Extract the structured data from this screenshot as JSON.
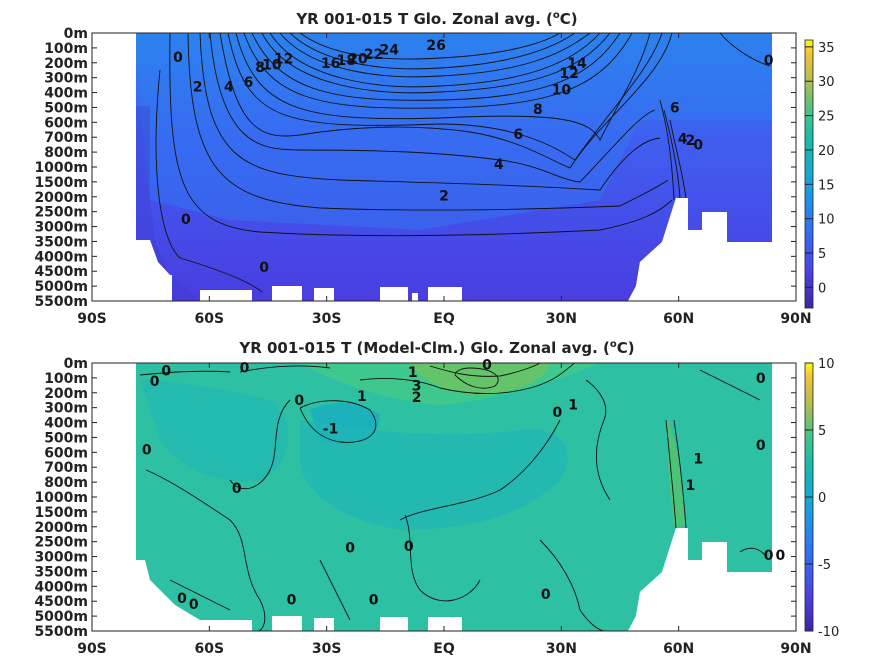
{
  "chart_data": [
    {
      "type": "heatmap",
      "title": "YR 001-015 T Glo. Zonal avg. (°C)",
      "title_main": "YR 001-015 T Glo. Zonal avg. (",
      "title_sup": "o",
      "title_unit": "C)",
      "x_ticks": [
        "90S",
        "60S",
        "30S",
        "EQ",
        "30N",
        "60N",
        "90N"
      ],
      "x_values": [
        -90,
        -60,
        -30,
        0,
        30,
        60,
        90
      ],
      "y_ticks": [
        "0m",
        "100m",
        "200m",
        "300m",
        "400m",
        "500m",
        "600m",
        "700m",
        "800m",
        "1000m",
        "1500m",
        "2000m",
        "2500m",
        "3000m",
        "3500m",
        "4000m",
        "4500m",
        "5000m",
        "5500m"
      ],
      "colorbar": {
        "ticks": [
          "35",
          "30",
          "25",
          "20",
          "15",
          "10",
          "5",
          "0"
        ],
        "values": [
          35,
          30,
          25,
          20,
          15,
          10,
          5,
          0
        ],
        "range": [
          -3,
          36
        ]
      },
      "contour_labels": [
        {
          "text": "26",
          "lat": -2,
          "depth_index": 0.8
        },
        {
          "text": "24",
          "lat": -14,
          "depth_index": 1.1
        },
        {
          "text": "22",
          "lat": -18,
          "depth_index": 1.4
        },
        {
          "text": "20",
          "lat": -22,
          "depth_index": 1.7
        },
        {
          "text": "18",
          "lat": -25,
          "depth_index": 1.8
        },
        {
          "text": "16",
          "lat": -29,
          "depth_index": 2.0
        },
        {
          "text": "14",
          "lat": 34,
          "depth_index": 2.0
        },
        {
          "text": "12",
          "lat": 32,
          "depth_index": 2.7
        },
        {
          "text": "12",
          "lat": -41,
          "depth_index": 1.7
        },
        {
          "text": "10",
          "lat": -44,
          "depth_index": 2.1
        },
        {
          "text": "8",
          "lat": -47,
          "depth_index": 2.3
        },
        {
          "text": "10",
          "lat": 30,
          "depth_index": 3.8
        },
        {
          "text": "8",
          "lat": 24,
          "depth_index": 5.1
        },
        {
          "text": "6",
          "lat": -50,
          "depth_index": 3.3
        },
        {
          "text": "6",
          "lat": 19,
          "depth_index": 6.8
        },
        {
          "text": "4",
          "lat": -55,
          "depth_index": 3.6
        },
        {
          "text": "4",
          "lat": 14,
          "depth_index": 8.8
        },
        {
          "text": "2",
          "lat": -63,
          "depth_index": 3.6
        },
        {
          "text": "2",
          "lat": 0,
          "depth_index": 10.9
        },
        {
          "text": "6",
          "lat": 59,
          "depth_index": 5.0
        },
        {
          "text": "4",
          "lat": 61,
          "depth_index": 7.1
        },
        {
          "text": "2",
          "lat": 63,
          "depth_index": 7.2
        },
        {
          "text": "0",
          "lat": 65,
          "depth_index": 7.5
        },
        {
          "text": "0",
          "lat": -68,
          "depth_index": 1.6
        },
        {
          "text": "0",
          "lat": 83,
          "depth_index": 1.8
        },
        {
          "text": "0",
          "lat": -66,
          "depth_index": 12.5
        },
        {
          "text": "0",
          "lat": -46,
          "depth_index": 15.7
        }
      ]
    },
    {
      "type": "heatmap",
      "title": "YR 001-015 T (Model-Clm.) Glo. Zonal avg. (°C)",
      "title_main": "YR 001-015 T (Model-Clm.) Glo. Zonal avg. (",
      "title_sup": "o",
      "title_unit": "C)",
      "x_ticks": [
        "90S",
        "60S",
        "30S",
        "EQ",
        "30N",
        "60N",
        "90N"
      ],
      "x_values": [
        -90,
        -60,
        -30,
        0,
        30,
        60,
        90
      ],
      "y_ticks": [
        "0m",
        "100m",
        "200m",
        "300m",
        "400m",
        "500m",
        "600m",
        "700m",
        "800m",
        "1000m",
        "1500m",
        "2000m",
        "2500m",
        "3000m",
        "3500m",
        "4000m",
        "4500m",
        "5000m",
        "5500m"
      ],
      "colorbar": {
        "ticks": [
          "10",
          "5",
          "0",
          "-5",
          "-10"
        ],
        "values": [
          10,
          5,
          0,
          -5,
          -10
        ],
        "range": [
          -10,
          10
        ]
      },
      "contour_labels": [
        {
          "text": "0",
          "lat": -71,
          "depth_index": 0.5
        },
        {
          "text": "0",
          "lat": -51,
          "depth_index": 0.3
        },
        {
          "text": "0",
          "lat": -74,
          "depth_index": 1.2
        },
        {
          "text": "1",
          "lat": -8,
          "depth_index": 0.6
        },
        {
          "text": "0",
          "lat": 11,
          "depth_index": 0.1
        },
        {
          "text": "1",
          "lat": -21,
          "depth_index": 2.2
        },
        {
          "text": "3",
          "lat": -7,
          "depth_index": 1.5
        },
        {
          "text": "2",
          "lat": -7,
          "depth_index": 2.3
        },
        {
          "text": "0",
          "lat": -37,
          "depth_index": 2.5
        },
        {
          "text": "0",
          "lat": 29,
          "depth_index": 3.3
        },
        {
          "text": "1",
          "lat": 33,
          "depth_index": 2.8
        },
        {
          "text": "-1",
          "lat": -29,
          "depth_index": 4.4
        },
        {
          "text": "0",
          "lat": -76,
          "depth_index": 5.8
        },
        {
          "text": "1",
          "lat": 65,
          "depth_index": 6.4
        },
        {
          "text": "1",
          "lat": 63,
          "depth_index": 8.2
        },
        {
          "text": "0",
          "lat": 81,
          "depth_index": 1.0
        },
        {
          "text": "0",
          "lat": 81,
          "depth_index": 5.5
        },
        {
          "text": "0",
          "lat": -53,
          "depth_index": 8.4
        },
        {
          "text": "0",
          "lat": -9,
          "depth_index": 12.3
        },
        {
          "text": "0",
          "lat": -24,
          "depth_index": 12.4
        },
        {
          "text": "0",
          "lat": -67,
          "depth_index": 15.8
        },
        {
          "text": "0",
          "lat": -64,
          "depth_index": 16.2
        },
        {
          "text": "0",
          "lat": -39,
          "depth_index": 15.9
        },
        {
          "text": "0",
          "lat": -18,
          "depth_index": 15.9
        },
        {
          "text": "0",
          "lat": 26,
          "depth_index": 15.5
        },
        {
          "text": "0",
          "lat": 83,
          "depth_index": 12.9
        },
        {
          "text": "0",
          "lat": 86,
          "depth_index": 12.9
        }
      ]
    }
  ]
}
